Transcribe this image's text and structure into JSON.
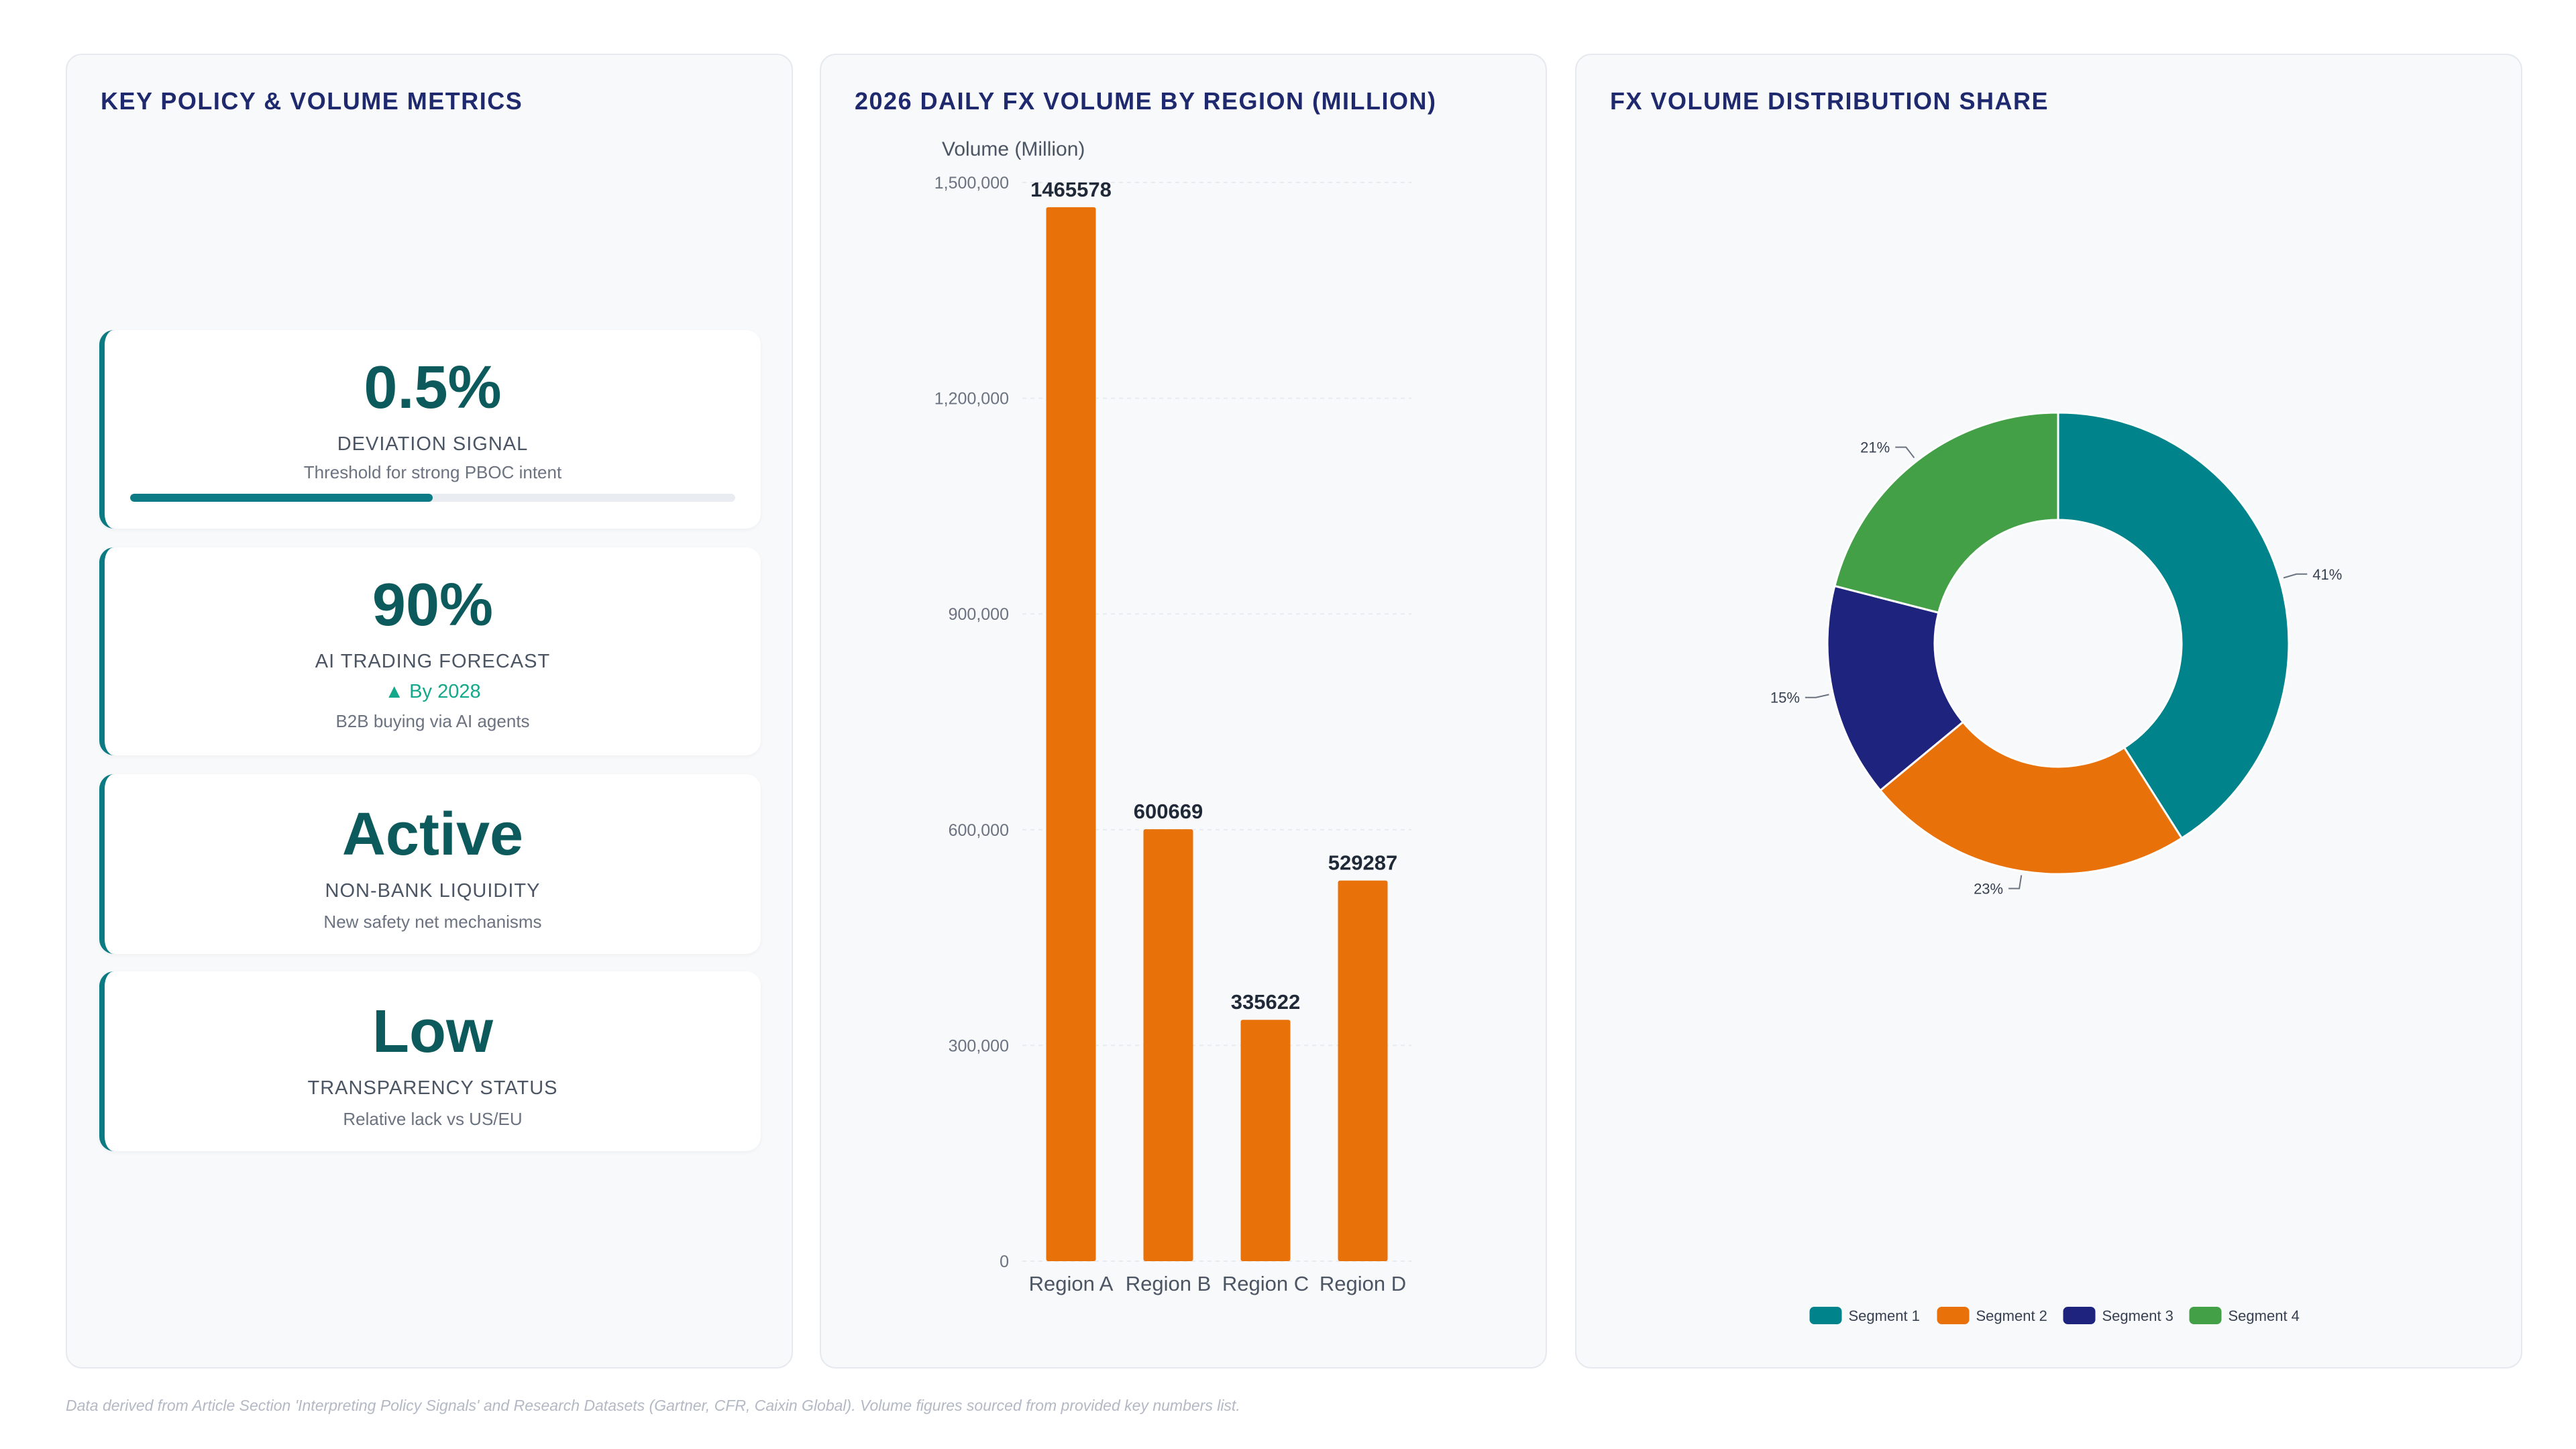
{
  "metrics_panel": {
    "title": "KEY POLICY & VOLUME METRICS",
    "cards": [
      {
        "value": "0.5%",
        "label": "DEVIATION SIGNAL",
        "desc": "Threshold for strong PBOC intent",
        "progress": 0.5
      },
      {
        "value": "90%",
        "label": "AI TRADING FORECAST",
        "trend": "▲ By 2028",
        "desc": "B2B buying via AI agents"
      },
      {
        "value": "Active",
        "label": "NON-BANK LIQUIDITY",
        "desc": "New safety net mechanisms"
      },
      {
        "value": "Low",
        "label": "TRANSPARENCY STATUS",
        "desc": "Relative lack vs US/EU"
      }
    ],
    "colors": {
      "accent": "#0c7a83",
      "value_text": "#0d5a5c",
      "trend": "#14a88a"
    }
  },
  "bar_panel": {
    "title": "2026 DAILY FX VOLUME BY REGION (MILLION)"
  },
  "donut_panel": {
    "title": "FX VOLUME DISTRIBUTION SHARE"
  },
  "footnote": "Data derived from Article Section 'Interpreting Policy Signals' and Research Datasets (Gartner, CFR, Caixin Global). Volume figures sourced from provided key numbers list.",
  "chart_data": [
    {
      "type": "bar",
      "title": "2026 DAILY FX VOLUME BY REGION (MILLION)",
      "ylabel": "Volume (Million)",
      "xlabel": "",
      "categories": [
        "Region A",
        "Region B",
        "Region C",
        "Region D"
      ],
      "values": [
        1465578,
        600669,
        335622,
        529287
      ],
      "ylim": [
        0,
        1500000
      ],
      "yticks": [
        0,
        300000,
        600000,
        900000,
        1200000,
        1500000
      ],
      "ytick_labels": [
        "0",
        "300,000",
        "600,000",
        "900,000",
        "1,200,000",
        "1,500,000"
      ],
      "grid": true,
      "color": "#e8710a"
    },
    {
      "type": "pie",
      "title": "FX VOLUME DISTRIBUTION SHARE",
      "donut": true,
      "labels": [
        "Segment 1",
        "Segment 2",
        "Segment 3",
        "Segment 4"
      ],
      "values": [
        41,
        23,
        15,
        21
      ],
      "value_labels": [
        "41%",
        "23%",
        "15%",
        "21%"
      ],
      "colors": [
        "#00838a",
        "#e8710a",
        "#1e237e",
        "#43a047"
      ],
      "legend": "bottom"
    }
  ]
}
